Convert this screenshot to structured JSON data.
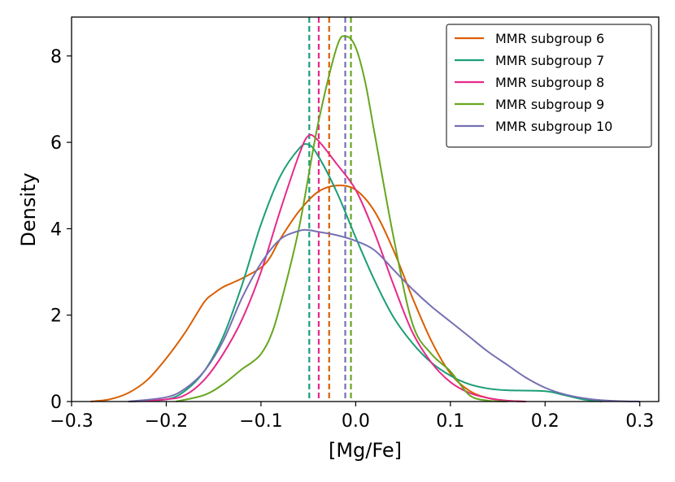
{
  "chart_data": {
    "type": "line",
    "xlabel": "[Mg/Fe]",
    "ylabel": "Density",
    "xlim": [
      -0.3,
      0.32
    ],
    "ylim": [
      0,
      8.9
    ],
    "x_ticks": [
      -0.3,
      -0.2,
      -0.1,
      0.0,
      0.1,
      0.2,
      0.3
    ],
    "x_tick_labels": [
      "−0.3",
      "−0.2",
      "−0.1",
      "0.0",
      "0.1",
      "0.2",
      "0.3"
    ],
    "y_ticks": [
      0,
      2,
      4,
      6,
      8
    ],
    "y_tick_labels": [
      "0",
      "2",
      "4",
      "6",
      "8"
    ],
    "grid": false,
    "legend_position": "top-right",
    "series": [
      {
        "name": "MMR subgroup 6",
        "color": "#d95f02",
        "median": -0.028,
        "x": [
          -0.28,
          -0.26,
          -0.24,
          -0.22,
          -0.2,
          -0.18,
          -0.16,
          -0.15,
          -0.14,
          -0.13,
          -0.12,
          -0.1,
          -0.09,
          -0.08,
          -0.06,
          -0.04,
          -0.02,
          0.0,
          0.02,
          0.04,
          0.06,
          0.08,
          0.1,
          0.12,
          0.14,
          0.16,
          0.18
        ],
        "y": [
          0.0,
          0.05,
          0.2,
          0.5,
          1.0,
          1.6,
          2.3,
          2.5,
          2.65,
          2.75,
          2.85,
          3.1,
          3.35,
          3.75,
          4.4,
          4.85,
          5.0,
          4.9,
          4.4,
          3.5,
          2.4,
          1.4,
          0.65,
          0.25,
          0.08,
          0.02,
          0.0
        ]
      },
      {
        "name": "MMR subgroup 7",
        "color": "#1b9e77",
        "median": -0.049,
        "x": [
          -0.24,
          -0.2,
          -0.18,
          -0.16,
          -0.14,
          -0.12,
          -0.1,
          -0.08,
          -0.06,
          -0.05,
          -0.04,
          -0.02,
          0.0,
          0.02,
          0.04,
          0.06,
          0.08,
          0.1,
          0.12,
          0.14,
          0.16,
          0.2,
          0.22,
          0.24,
          0.26
        ],
        "y": [
          0.0,
          0.05,
          0.25,
          0.7,
          1.5,
          2.7,
          4.1,
          5.2,
          5.85,
          5.95,
          5.7,
          4.85,
          3.8,
          2.8,
          1.95,
          1.35,
          0.9,
          0.6,
          0.4,
          0.3,
          0.26,
          0.24,
          0.15,
          0.05,
          0.0
        ]
      },
      {
        "name": "MMR subgroup 8",
        "color": "#e7298a",
        "median": -0.039,
        "x": [
          -0.24,
          -0.2,
          -0.18,
          -0.16,
          -0.14,
          -0.12,
          -0.1,
          -0.08,
          -0.06,
          -0.05,
          -0.04,
          -0.02,
          0.0,
          0.02,
          0.04,
          0.06,
          0.08,
          0.1,
          0.12,
          0.14,
          0.16,
          0.18
        ],
        "y": [
          0.0,
          0.05,
          0.15,
          0.5,
          1.1,
          1.9,
          3.0,
          4.4,
          5.7,
          6.15,
          6.05,
          5.5,
          4.9,
          3.9,
          2.7,
          1.6,
          0.9,
          0.45,
          0.2,
          0.08,
          0.02,
          0.0
        ]
      },
      {
        "name": "MMR subgroup 9",
        "color": "#66a61e",
        "median": -0.005,
        "x": [
          -0.19,
          -0.16,
          -0.14,
          -0.12,
          -0.11,
          -0.1,
          -0.09,
          -0.08,
          -0.06,
          -0.04,
          -0.02,
          -0.01,
          0.0,
          0.01,
          0.02,
          0.04,
          0.06,
          0.08,
          0.1,
          0.12,
          0.14,
          0.16
        ],
        "y": [
          0.0,
          0.15,
          0.4,
          0.75,
          0.9,
          1.1,
          1.5,
          2.2,
          4.0,
          6.4,
          8.2,
          8.45,
          8.2,
          7.4,
          6.2,
          3.8,
          1.8,
          1.1,
          0.7,
          0.15,
          0.02,
          0.0
        ]
      },
      {
        "name": "MMR subgroup 10",
        "color": "#7570b3",
        "median": -0.011,
        "x": [
          -0.24,
          -0.2,
          -0.18,
          -0.16,
          -0.14,
          -0.12,
          -0.1,
          -0.08,
          -0.06,
          -0.05,
          -0.04,
          -0.02,
          0.0,
          0.02,
          0.04,
          0.06,
          0.08,
          0.1,
          0.12,
          0.14,
          0.16,
          0.18,
          0.2,
          0.22,
          0.24,
          0.26,
          0.28,
          0.3
        ],
        "y": [
          0.0,
          0.1,
          0.3,
          0.7,
          1.4,
          2.4,
          3.2,
          3.75,
          3.95,
          3.97,
          3.93,
          3.85,
          3.72,
          3.5,
          3.05,
          2.6,
          2.2,
          1.85,
          1.5,
          1.15,
          0.85,
          0.55,
          0.32,
          0.17,
          0.08,
          0.03,
          0.01,
          0.0
        ]
      }
    ]
  }
}
